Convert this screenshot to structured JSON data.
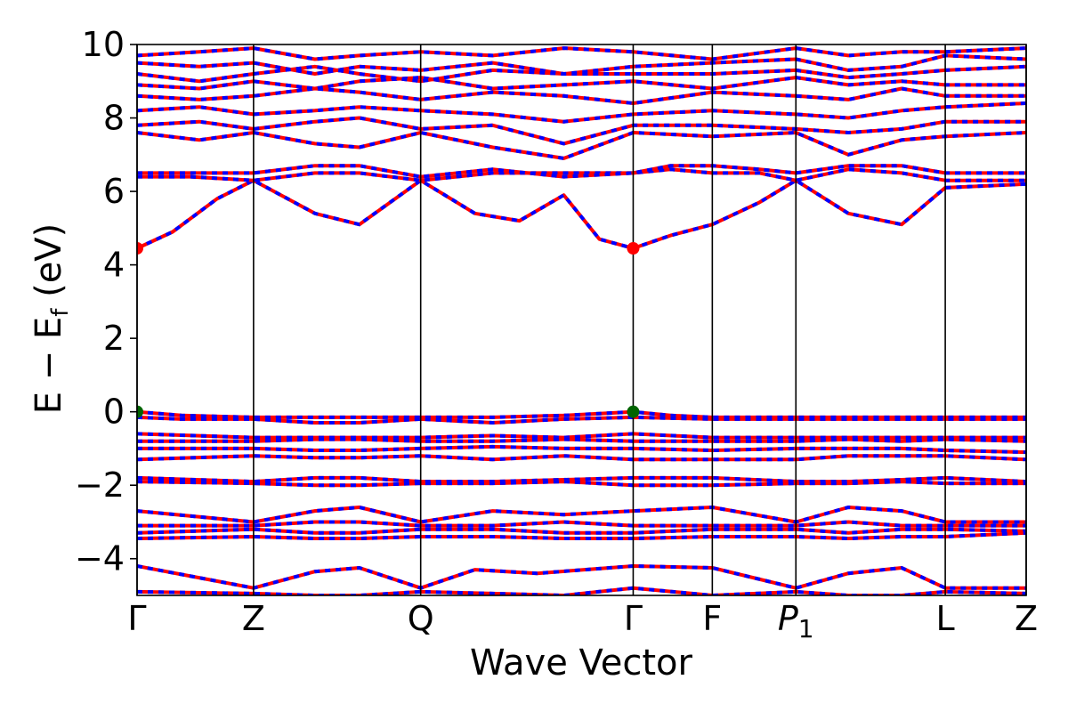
{
  "chart_data": {
    "type": "line",
    "title": "",
    "xlabel": "Wave Vector",
    "ylabel": "E − E_f (eV)",
    "ylabel_parts": {
      "main": "E − E",
      "sub": "f",
      "unit": " (eV)"
    },
    "ylim": [
      -5,
      10
    ],
    "yticks": [
      {
        "value": -4,
        "label": "−4"
      },
      {
        "value": -2,
        "label": "−2"
      },
      {
        "value": 0,
        "label": "0"
      },
      {
        "value": 2,
        "label": "2"
      },
      {
        "value": 4,
        "label": "4"
      },
      {
        "value": 6,
        "label": "6"
      },
      {
        "value": 8,
        "label": "8"
      },
      {
        "value": 10,
        "label": "10"
      }
    ],
    "kpoints": [
      {
        "label": "Γ",
        "x": 0.0
      },
      {
        "label": "Z",
        "x": 0.131
      },
      {
        "label": "Q",
        "x": 0.319
      },
      {
        "label": "Γ",
        "x": 0.558
      },
      {
        "label": "F",
        "x": 0.647
      },
      {
        "label": "P",
        "sub": "1",
        "x": 0.741
      },
      {
        "label": "L",
        "x": 0.909
      },
      {
        "label": "Z",
        "x": 1.0
      }
    ],
    "xlim": [
      0.0,
      1.0
    ],
    "series_style": {
      "up_color": "#ff0000",
      "down_color": "#0000ff"
    },
    "markers": [
      {
        "name": "CBM",
        "x": 0.0,
        "y": 4.45,
        "color": "#ff0000"
      },
      {
        "name": "CBM",
        "x": 0.558,
        "y": 4.45,
        "color": "#ff0000"
      },
      {
        "name": "VBM",
        "x": 0.0,
        "y": 0.0,
        "color": "#006400"
      },
      {
        "name": "VBM",
        "x": 0.558,
        "y": 0.0,
        "color": "#006400"
      }
    ],
    "series": [
      {
        "values_x": [
          0.0,
          0.04,
          0.09,
          0.131,
          0.2,
          0.25,
          0.319,
          0.38,
          0.43,
          0.48,
          0.52,
          0.558,
          0.6,
          0.647,
          0.7,
          0.741,
          0.8,
          0.86,
          0.909,
          1.0
        ],
        "values": [
          4.45,
          4.9,
          5.8,
          6.3,
          5.4,
          5.1,
          6.3,
          5.4,
          5.2,
          5.9,
          4.7,
          4.45,
          4.8,
          5.1,
          5.7,
          6.3,
          5.4,
          5.1,
          6.1,
          6.2
        ]
      },
      {
        "values_x": [
          0.0,
          0.06,
          0.131,
          0.2,
          0.25,
          0.319,
          0.4,
          0.48,
          0.558,
          0.6,
          0.647,
          0.7,
          0.741,
          0.8,
          0.86,
          0.909,
          1.0
        ],
        "values": [
          6.4,
          6.4,
          6.3,
          6.5,
          6.5,
          6.3,
          6.5,
          6.5,
          6.5,
          6.6,
          6.5,
          6.5,
          6.3,
          6.6,
          6.5,
          6.3,
          6.3
        ]
      },
      {
        "values_x": [
          0.0,
          0.06,
          0.131,
          0.2,
          0.25,
          0.319,
          0.4,
          0.48,
          0.558,
          0.6,
          0.647,
          0.7,
          0.741,
          0.8,
          0.86,
          0.909,
          1.0
        ],
        "values": [
          6.5,
          6.5,
          6.5,
          6.7,
          6.7,
          6.4,
          6.6,
          6.4,
          6.5,
          6.7,
          6.7,
          6.6,
          6.5,
          6.7,
          6.7,
          6.5,
          6.5
        ]
      },
      {
        "values_x": [
          0.0,
          0.07,
          0.131,
          0.2,
          0.25,
          0.319,
          0.4,
          0.48,
          0.558,
          0.647,
          0.741,
          0.8,
          0.86,
          0.909,
          1.0
        ],
        "values": [
          7.6,
          7.4,
          7.6,
          7.3,
          7.2,
          7.6,
          7.2,
          6.9,
          7.6,
          7.5,
          7.6,
          7.0,
          7.4,
          7.5,
          7.6
        ]
      },
      {
        "values_x": [
          0.0,
          0.07,
          0.131,
          0.2,
          0.25,
          0.319,
          0.4,
          0.48,
          0.558,
          0.647,
          0.741,
          0.8,
          0.86,
          0.909,
          1.0
        ],
        "values": [
          7.8,
          7.9,
          7.7,
          7.9,
          8.0,
          7.7,
          7.8,
          7.3,
          7.8,
          7.8,
          7.7,
          7.6,
          7.7,
          7.9,
          7.9
        ]
      },
      {
        "values_x": [
          0.0,
          0.07,
          0.131,
          0.2,
          0.25,
          0.319,
          0.4,
          0.48,
          0.558,
          0.647,
          0.741,
          0.8,
          0.86,
          0.909,
          1.0
        ],
        "values": [
          8.2,
          8.3,
          8.1,
          8.2,
          8.3,
          8.2,
          8.1,
          7.9,
          8.1,
          8.2,
          8.1,
          8.0,
          8.2,
          8.3,
          8.4
        ]
      },
      {
        "values_x": [
          0.0,
          0.07,
          0.131,
          0.2,
          0.25,
          0.319,
          0.4,
          0.48,
          0.558,
          0.647,
          0.741,
          0.8,
          0.86,
          0.909,
          1.0
        ],
        "values": [
          8.6,
          8.5,
          8.6,
          8.8,
          8.7,
          8.5,
          8.7,
          8.6,
          8.4,
          8.7,
          8.6,
          8.5,
          8.8,
          8.6,
          8.6
        ]
      },
      {
        "values_x": [
          0.0,
          0.07,
          0.131,
          0.2,
          0.25,
          0.319,
          0.4,
          0.48,
          0.558,
          0.647,
          0.741,
          0.8,
          0.86,
          0.909,
          1.0
        ],
        "values": [
          8.9,
          8.8,
          9.0,
          8.8,
          9.0,
          9.1,
          8.8,
          8.9,
          9.0,
          8.8,
          9.1,
          8.9,
          9.0,
          8.9,
          8.9
        ]
      },
      {
        "values_x": [
          0.0,
          0.07,
          0.131,
          0.2,
          0.25,
          0.319,
          0.4,
          0.48,
          0.558,
          0.647,
          0.741,
          0.8,
          0.86,
          0.909,
          1.0
        ],
        "values": [
          9.5,
          9.4,
          9.5,
          9.2,
          9.4,
          9.3,
          9.5,
          9.2,
          9.4,
          9.5,
          9.6,
          9.3,
          9.4,
          9.7,
          9.6
        ]
      },
      {
        "values_x": [
          0.0,
          0.07,
          0.131,
          0.2,
          0.25,
          0.319,
          0.4,
          0.48,
          0.558,
          0.647,
          0.741,
          0.8,
          0.86,
          0.909,
          1.0
        ],
        "values": [
          9.7,
          9.8,
          9.9,
          9.6,
          9.7,
          9.8,
          9.7,
          9.9,
          9.8,
          9.6,
          9.9,
          9.7,
          9.8,
          9.8,
          9.9
        ]
      },
      {
        "values_x": [
          0.0,
          0.07,
          0.131,
          0.2,
          0.25,
          0.319,
          0.4,
          0.48,
          0.558,
          0.647,
          0.741,
          0.8,
          0.86,
          0.909,
          1.0
        ],
        "values": [
          9.2,
          9.0,
          9.2,
          9.4,
          9.2,
          9.0,
          9.3,
          9.2,
          9.2,
          9.2,
          9.3,
          9.1,
          9.2,
          9.3,
          9.4
        ]
      },
      {
        "values_x": [
          0.0,
          0.05,
          0.131,
          0.2,
          0.25,
          0.319,
          0.4,
          0.48,
          0.558,
          0.6,
          0.647,
          0.741,
          0.8,
          0.86,
          0.909,
          1.0
        ],
        "values": [
          0.0,
          -0.1,
          -0.15,
          -0.15,
          -0.15,
          -0.15,
          -0.15,
          -0.1,
          0.0,
          -0.1,
          -0.15,
          -0.15,
          -0.15,
          -0.15,
          -0.15,
          -0.15
        ]
      },
      {
        "values_x": [
          0.0,
          0.05,
          0.131,
          0.2,
          0.25,
          0.319,
          0.4,
          0.48,
          0.558,
          0.647,
          0.741,
          0.8,
          0.86,
          0.909,
          1.0
        ],
        "values": [
          -0.15,
          -0.2,
          -0.2,
          -0.3,
          -0.3,
          -0.2,
          -0.3,
          -0.2,
          -0.15,
          -0.2,
          -0.2,
          -0.2,
          -0.2,
          -0.2,
          -0.2
        ]
      },
      {
        "values_x": [
          0.0,
          0.131,
          0.2,
          0.25,
          0.319,
          0.4,
          0.48,
          0.558,
          0.647,
          0.741,
          0.8,
          0.86,
          0.909,
          1.0
        ],
        "values": [
          -0.6,
          -0.7,
          -0.7,
          -0.7,
          -0.7,
          -0.65,
          -0.7,
          -0.6,
          -0.7,
          -0.7,
          -0.7,
          -0.7,
          -0.7,
          -0.7
        ]
      },
      {
        "values_x": [
          0.0,
          0.131,
          0.2,
          0.25,
          0.319,
          0.4,
          0.48,
          0.558,
          0.647,
          0.741,
          0.8,
          0.86,
          0.909,
          1.0
        ],
        "values": [
          -0.8,
          -0.8,
          -0.75,
          -0.75,
          -0.8,
          -0.8,
          -0.75,
          -0.8,
          -0.8,
          -0.8,
          -0.75,
          -0.8,
          -0.75,
          -0.8
        ]
      },
      {
        "values_x": [
          0.0,
          0.131,
          0.2,
          0.25,
          0.319,
          0.4,
          0.48,
          0.558,
          0.647,
          0.741,
          0.8,
          0.86,
          0.909,
          1.0
        ],
        "values": [
          -1.0,
          -1.0,
          -1.05,
          -1.05,
          -1.0,
          -0.95,
          -1.0,
          -1.0,
          -1.05,
          -1.0,
          -1.0,
          -1.0,
          -1.05,
          -1.1
        ]
      },
      {
        "values_x": [
          0.0,
          0.131,
          0.2,
          0.25,
          0.319,
          0.4,
          0.48,
          0.558,
          0.647,
          0.741,
          0.8,
          0.86,
          0.909,
          1.0
        ],
        "values": [
          -1.3,
          -1.2,
          -1.25,
          -1.25,
          -1.2,
          -1.3,
          -1.2,
          -1.3,
          -1.3,
          -1.3,
          -1.2,
          -1.2,
          -1.2,
          -1.3
        ]
      },
      {
        "values_x": [
          0.0,
          0.131,
          0.2,
          0.25,
          0.319,
          0.4,
          0.48,
          0.558,
          0.647,
          0.741,
          0.8,
          0.86,
          0.909,
          1.0
        ],
        "values": [
          -1.8,
          -1.9,
          -1.8,
          -1.8,
          -1.9,
          -1.9,
          -1.85,
          -1.8,
          -1.8,
          -1.9,
          -1.9,
          -1.85,
          -1.8,
          -1.9
        ]
      },
      {
        "values_x": [
          0.0,
          0.131,
          0.2,
          0.25,
          0.319,
          0.4,
          0.48,
          0.558,
          0.647,
          0.741,
          0.8,
          0.86,
          0.909,
          1.0
        ],
        "values": [
          -1.9,
          -1.95,
          -2.0,
          -2.0,
          -1.95,
          -1.95,
          -1.9,
          -2.0,
          -2.0,
          -1.95,
          -1.95,
          -1.9,
          -1.95,
          -1.95
        ]
      },
      {
        "values_x": [
          0.0,
          0.131,
          0.2,
          0.25,
          0.319,
          0.4,
          0.48,
          0.558,
          0.647,
          0.741,
          0.8,
          0.86,
          0.909,
          1.0
        ],
        "values": [
          -2.7,
          -3.0,
          -2.7,
          -2.6,
          -3.0,
          -2.7,
          -2.8,
          -2.7,
          -2.6,
          -3.0,
          -2.6,
          -2.7,
          -3.0,
          -3.0
        ]
      },
      {
        "values_x": [
          0.0,
          0.131,
          0.2,
          0.25,
          0.319,
          0.4,
          0.48,
          0.558,
          0.647,
          0.741,
          0.8,
          0.86,
          0.909,
          1.0
        ],
        "values": [
          -3.1,
          -3.1,
          -3.0,
          -3.0,
          -3.1,
          -3.1,
          -3.0,
          -3.1,
          -3.1,
          -3.1,
          -3.0,
          -3.1,
          -3.1,
          -3.1
        ]
      },
      {
        "values_x": [
          0.0,
          0.131,
          0.2,
          0.25,
          0.319,
          0.4,
          0.48,
          0.558,
          0.647,
          0.741,
          0.8,
          0.86,
          0.909,
          1.0
        ],
        "values": [
          -3.3,
          -3.2,
          -3.3,
          -3.3,
          -3.2,
          -3.2,
          -3.3,
          -3.3,
          -3.2,
          -3.2,
          -3.3,
          -3.2,
          -3.2,
          -3.25
        ]
      },
      {
        "values_x": [
          0.0,
          0.131,
          0.2,
          0.25,
          0.319,
          0.4,
          0.48,
          0.558,
          0.647,
          0.741,
          0.8,
          0.86,
          0.909,
          1.0
        ],
        "values": [
          -3.45,
          -3.4,
          -3.45,
          -3.45,
          -3.4,
          -3.4,
          -3.45,
          -3.45,
          -3.4,
          -3.4,
          -3.45,
          -3.4,
          -3.4,
          -3.3
        ]
      },
      {
        "values_x": [
          0.0,
          0.131,
          0.2,
          0.25,
          0.319,
          0.38,
          0.45,
          0.558,
          0.647,
          0.741,
          0.8,
          0.86,
          0.909,
          1.0
        ],
        "values": [
          -4.2,
          -4.8,
          -4.35,
          -4.25,
          -4.8,
          -4.3,
          -4.4,
          -4.2,
          -4.25,
          -4.8,
          -4.4,
          -4.25,
          -4.8,
          -4.8
        ]
      },
      {
        "values_x": [
          0.0,
          0.131,
          0.2,
          0.25,
          0.319,
          0.4,
          0.48,
          0.558,
          0.647,
          0.741,
          0.8,
          0.86,
          0.909,
          1.0
        ],
        "values": [
          -4.9,
          -4.95,
          -5.0,
          -5.0,
          -4.9,
          -4.95,
          -5.0,
          -4.8,
          -5.0,
          -4.9,
          -5.0,
          -5.0,
          -4.9,
          -4.95
        ]
      }
    ]
  }
}
